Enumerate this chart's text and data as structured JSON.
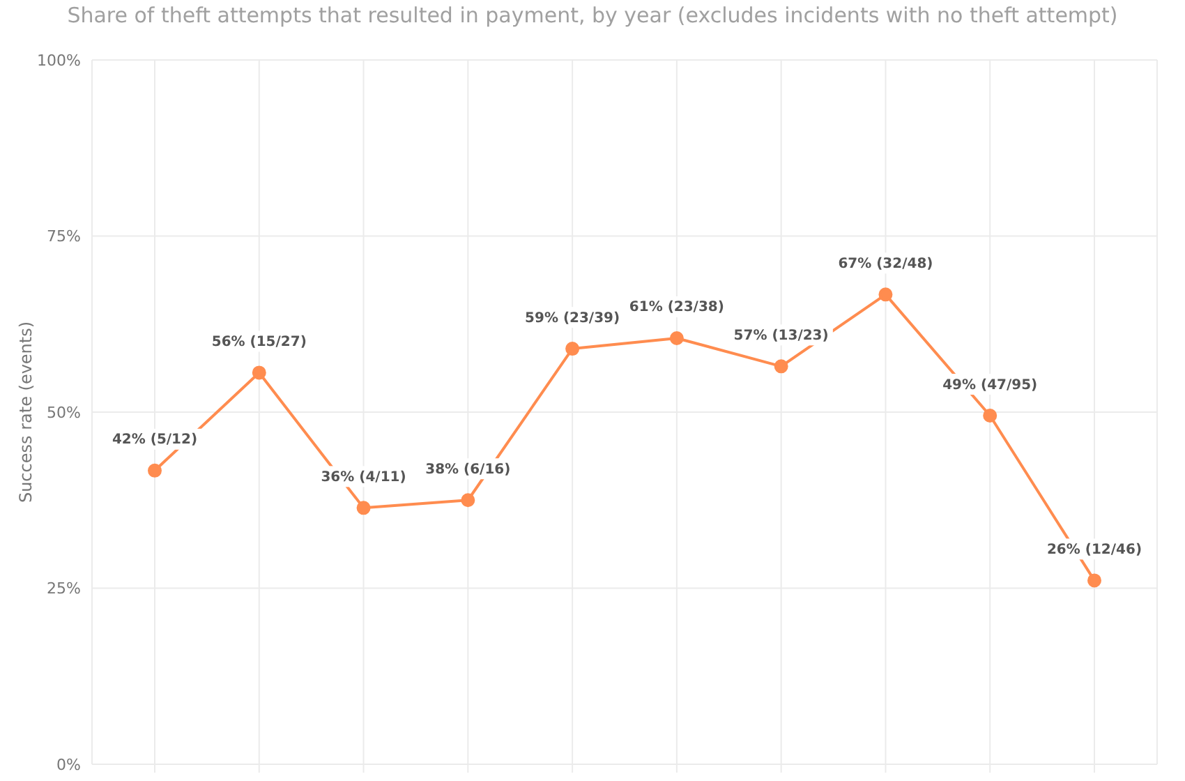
{
  "chart_data": {
    "type": "line",
    "subtitle": "Share of theft attempts that resulted in payment, by year (excludes incidents with no theft attempt)",
    "ylabel": "Success rate (events)",
    "categories": [
      null,
      null,
      null,
      null,
      null,
      null,
      null,
      null,
      null,
      null
    ],
    "series": [
      {
        "color": "#ff8c4f",
        "values": [
          41.7,
          55.6,
          36.4,
          37.5,
          59.0,
          60.5,
          56.5,
          66.7,
          49.5,
          26.1
        ],
        "value_labels": [
          "42% (5/12)",
          "56% (15/27)",
          "36% (4/11)",
          "38% (6/16)",
          "59% (23/39)",
          "61% (23/38)",
          "57% (13/23)",
          "67% (32/48)",
          "49% (47/95)",
          "26% (12/46)"
        ]
      }
    ],
    "ylim": [
      0,
      100
    ],
    "yticks": [
      {
        "value": 0,
        "label": "0%"
      },
      {
        "value": 25,
        "label": "25%"
      },
      {
        "value": 50,
        "label": "50%"
      },
      {
        "value": 75,
        "label": "75%"
      },
      {
        "value": 100,
        "label": "100%"
      }
    ],
    "grid": true,
    "marker": "circle",
    "line_style": "solid",
    "tick_labels": "y"
  }
}
